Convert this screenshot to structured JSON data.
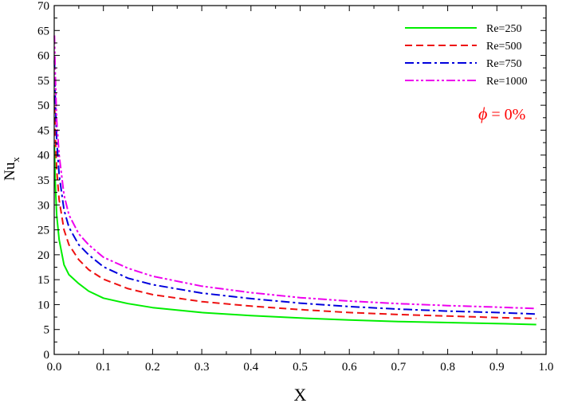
{
  "chart_data": {
    "type": "line",
    "xlabel": "X",
    "ylabel": "Nu",
    "ylabel_sub": "x",
    "xlim": [
      0.0,
      1.0
    ],
    "ylim": [
      0,
      70
    ],
    "xticks": [
      "0.0",
      "0.1",
      "0.2",
      "0.3",
      "0.4",
      "0.5",
      "0.6",
      "0.7",
      "0.8",
      "0.9",
      "1.0"
    ],
    "yticks": [
      "0",
      "5",
      "10",
      "15",
      "20",
      "25",
      "30",
      "35",
      "40",
      "45",
      "50",
      "55",
      "60",
      "65",
      "70"
    ],
    "grid": false,
    "legend_position": "top-right",
    "annotation": {
      "symbol": "ϕ",
      "text": " = 0%",
      "color": "#ff0000"
    },
    "series": [
      {
        "name": "Re=250",
        "color": "#00ee00",
        "dash": "solid",
        "x": [
          0.0005,
          0.002,
          0.005,
          0.01,
          0.02,
          0.03,
          0.05,
          0.07,
          0.1,
          0.15,
          0.2,
          0.3,
          0.4,
          0.5,
          0.6,
          0.7,
          0.8,
          0.9,
          0.98
        ],
        "y": [
          42,
          35,
          28,
          23,
          18,
          16,
          14.2,
          12.7,
          11.3,
          10.2,
          9.4,
          8.4,
          7.8,
          7.3,
          6.9,
          6.6,
          6.4,
          6.2,
          6.0
        ]
      },
      {
        "name": "Re=500",
        "color": "#ee1111",
        "dash": "dash",
        "x": [
          0.0005,
          0.002,
          0.005,
          0.01,
          0.02,
          0.03,
          0.05,
          0.07,
          0.1,
          0.15,
          0.2,
          0.3,
          0.4,
          0.5,
          0.6,
          0.7,
          0.8,
          0.9,
          0.98
        ],
        "y": [
          52,
          45,
          37,
          31,
          25,
          22,
          19,
          17,
          15.1,
          13.2,
          12,
          10.6,
          9.7,
          9.0,
          8.4,
          8.0,
          7.7,
          7.4,
          7.2
        ]
      },
      {
        "name": "Re=750",
        "color": "#0000dd",
        "dash": "dashdot",
        "x": [
          0.0005,
          0.002,
          0.005,
          0.01,
          0.02,
          0.03,
          0.05,
          0.07,
          0.1,
          0.15,
          0.2,
          0.3,
          0.4,
          0.5,
          0.6,
          0.7,
          0.8,
          0.9,
          0.98
        ],
        "y": [
          59,
          52,
          43,
          36,
          29,
          25.5,
          22,
          20,
          17.6,
          15.3,
          14,
          12.3,
          11.2,
          10.3,
          9.6,
          9.1,
          8.7,
          8.4,
          8.1
        ]
      },
      {
        "name": "Re=1000",
        "color": "#ee00ee",
        "dash": "dashdotdot",
        "x": [
          0.0005,
          0.002,
          0.005,
          0.01,
          0.02,
          0.03,
          0.05,
          0.07,
          0.1,
          0.15,
          0.2,
          0.3,
          0.4,
          0.5,
          0.6,
          0.7,
          0.8,
          0.9,
          0.98
        ],
        "y": [
          64,
          57,
          47,
          40,
          32,
          28,
          24.2,
          22,
          19.5,
          17.3,
          15.7,
          13.7,
          12.4,
          11.4,
          10.7,
          10.2,
          9.8,
          9.5,
          9.2
        ]
      }
    ]
  }
}
